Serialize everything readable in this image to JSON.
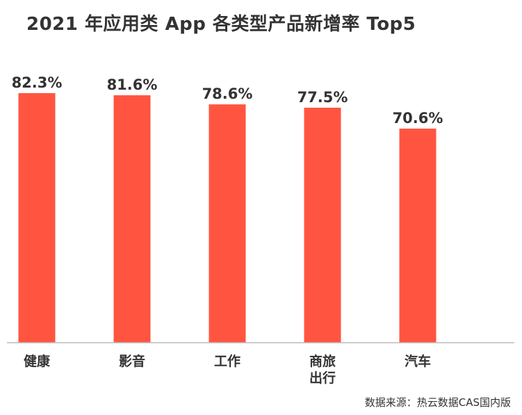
{
  "chart_data": {
    "type": "bar",
    "title": "2021 年应用类 App 各类型产品新增率 Top5",
    "categories": [
      "健康",
      "影音",
      "工作",
      "商旅出行",
      "汽车"
    ],
    "category_lines": [
      [
        "健康"
      ],
      [
        "影音"
      ],
      [
        "工作"
      ],
      [
        "商旅",
        "出行"
      ],
      [
        "汽车"
      ]
    ],
    "values": [
      82.3,
      81.6,
      78.6,
      77.5,
      70.6
    ],
    "value_labels": [
      "82.3%",
      "81.6%",
      "78.6%",
      "77.5%",
      "70.6%"
    ],
    "ylim": [
      0,
      82.3
    ],
    "bar_color": "#FF5540",
    "axis_color": "#BBBBBB",
    "grid": false,
    "legend": "none",
    "source": "数据来源：热云数据CAS国内版"
  }
}
